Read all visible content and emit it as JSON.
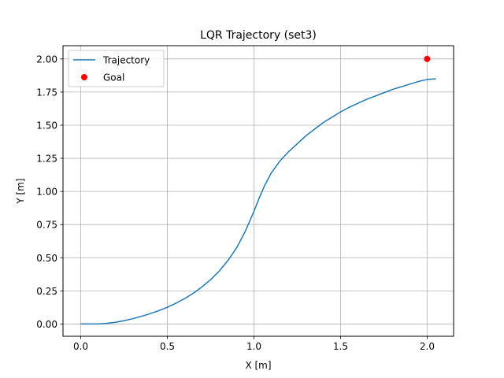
{
  "chart_data": {
    "type": "line",
    "title": "LQR Trajectory (set3)",
    "xlabel": "X [m]",
    "ylabel": "Y [m]",
    "xlim": [
      -0.1025,
      2.1525
    ],
    "ylim": [
      -0.0925,
      2.1
    ],
    "grid": true,
    "legend_position": "top-left",
    "xticks": [
      0.0,
      0.5,
      1.0,
      1.5,
      2.0
    ],
    "xtick_labels": [
      "0.0",
      "0.5",
      "1.0",
      "1.5",
      "2.0"
    ],
    "yticks": [
      0.0,
      0.25,
      0.5,
      0.75,
      1.0,
      1.25,
      1.5,
      1.75,
      2.0
    ],
    "ytick_labels": [
      "0.00",
      "0.25",
      "0.50",
      "0.75",
      "1.00",
      "1.25",
      "1.50",
      "1.75",
      "2.00"
    ],
    "series": [
      {
        "name": "Trajectory",
        "color": "#1f77b4",
        "x": [
          0.0,
          0.05,
          0.1,
          0.15,
          0.2,
          0.25,
          0.3,
          0.35,
          0.4,
          0.45,
          0.5,
          0.55,
          0.6,
          0.65,
          0.7,
          0.75,
          0.8,
          0.85,
          0.9,
          0.95,
          1.0,
          1.03,
          1.06,
          1.1,
          1.15,
          1.2,
          1.25,
          1.3,
          1.35,
          1.4,
          1.45,
          1.5,
          1.55,
          1.6,
          1.65,
          1.7,
          1.75,
          1.8,
          1.85,
          1.9,
          1.95,
          2.0,
          2.05
        ],
        "y": [
          0.0,
          0.0,
          0.0,
          0.005,
          0.013,
          0.025,
          0.04,
          0.058,
          0.078,
          0.1,
          0.126,
          0.157,
          0.192,
          0.232,
          0.28,
          0.335,
          0.4,
          0.48,
          0.575,
          0.7,
          0.85,
          0.95,
          1.04,
          1.14,
          1.23,
          1.3,
          1.36,
          1.42,
          1.47,
          1.52,
          1.56,
          1.6,
          1.635,
          1.665,
          1.695,
          1.72,
          1.745,
          1.77,
          1.79,
          1.81,
          1.83,
          1.845,
          1.85
        ]
      },
      {
        "name": "Goal",
        "color": "#ff0000",
        "marker": "circle",
        "x": [
          2.0
        ],
        "y": [
          2.0
        ]
      }
    ]
  }
}
